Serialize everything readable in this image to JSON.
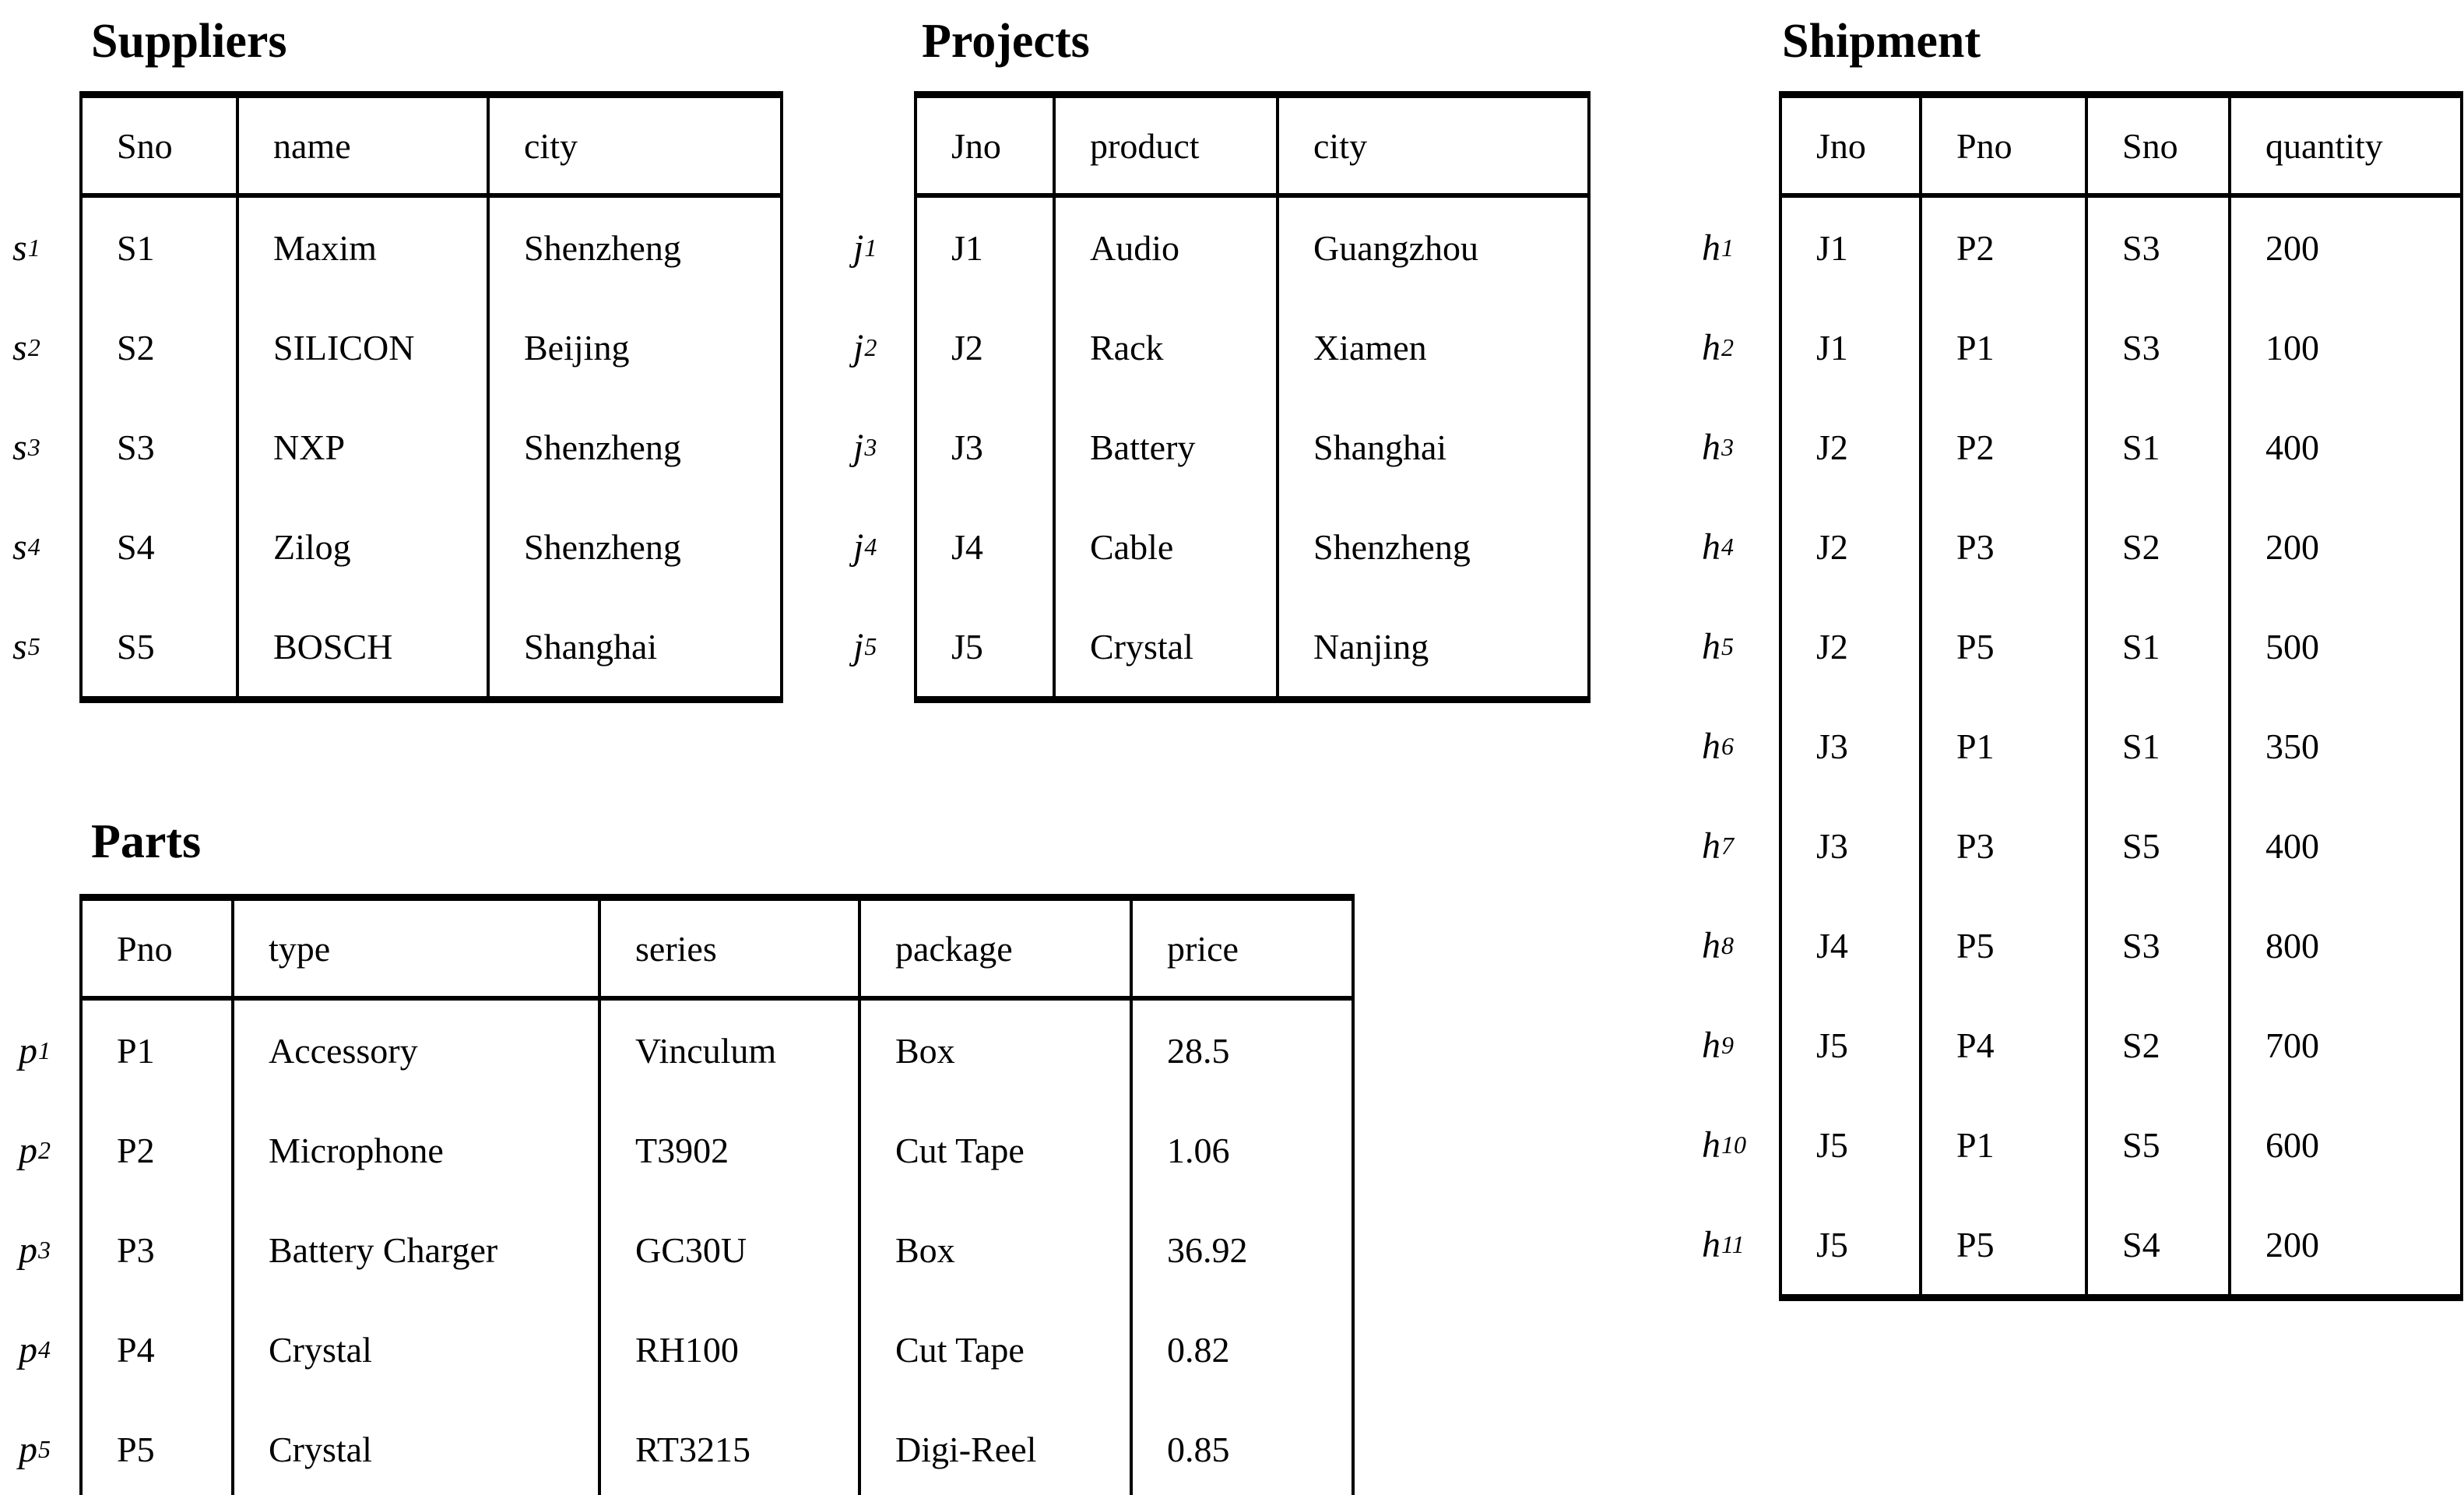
{
  "page": {
    "background_color": "#ffffff",
    "text_color": "#000000"
  },
  "tables": {
    "suppliers": {
      "title": "Suppliers",
      "columns": [
        "Sno",
        "name",
        "city"
      ],
      "row_labels": [
        "s1",
        "s2",
        "s3",
        "s4",
        "s5"
      ],
      "rows": [
        [
          "S1",
          "Maxim",
          "Shenzheng"
        ],
        [
          "S2",
          "SILICON",
          "Beijing"
        ],
        [
          "S3",
          "NXP",
          "Shenzheng"
        ],
        [
          "S4",
          "Zilog",
          "Shenzheng"
        ],
        [
          "S5",
          "BOSCH",
          "Shanghai"
        ]
      ]
    },
    "projects": {
      "title": "Projects",
      "columns": [
        "Jno",
        "product",
        "city"
      ],
      "row_labels": [
        "j1",
        "j2",
        "j3",
        "j4",
        "j5"
      ],
      "rows": [
        [
          "J1",
          "Audio",
          "Guangzhou"
        ],
        [
          "J2",
          "Rack",
          "Xiamen"
        ],
        [
          "J3",
          "Battery",
          "Shanghai"
        ],
        [
          "J4",
          "Cable",
          "Shenzheng"
        ],
        [
          "J5",
          "Crystal",
          "Nanjing"
        ]
      ]
    },
    "shipment": {
      "title": "Shipment",
      "columns": [
        "Jno",
        "Pno",
        "Sno",
        "quantity"
      ],
      "row_labels": [
        "h1",
        "h2",
        "h3",
        "h4",
        "h5",
        "h6",
        "h7",
        "h8",
        "h9",
        "h10",
        "h11"
      ],
      "rows": [
        [
          "J1",
          "P2",
          "S3",
          "200"
        ],
        [
          "J1",
          "P1",
          "S3",
          "100"
        ],
        [
          "J2",
          "P2",
          "S1",
          "400"
        ],
        [
          "J2",
          "P3",
          "S2",
          "200"
        ],
        [
          "J2",
          "P5",
          "S1",
          "500"
        ],
        [
          "J3",
          "P1",
          "S1",
          "350"
        ],
        [
          "J3",
          "P3",
          "S5",
          "400"
        ],
        [
          "J4",
          "P5",
          "S3",
          "800"
        ],
        [
          "J5",
          "P4",
          "S2",
          "700"
        ],
        [
          "J5",
          "P1",
          "S5",
          "600"
        ],
        [
          "J5",
          "P5",
          "S4",
          "200"
        ]
      ]
    },
    "parts": {
      "title": "Parts",
      "columns": [
        "Pno",
        "type",
        "series",
        "package",
        "price"
      ],
      "row_labels": [
        "p1",
        "p2",
        "p3",
        "p4",
        "p5"
      ],
      "rows": [
        [
          "P1",
          "Accessory",
          "Vinculum",
          "Box",
          "28.5"
        ],
        [
          "P2",
          "Microphone",
          "T3902",
          "Cut Tape",
          "1.06"
        ],
        [
          "P3",
          "Battery Charger",
          "GC30U",
          "Box",
          "36.92"
        ],
        [
          "P4",
          "Crystal",
          "RH100",
          "Cut Tape",
          "0.82"
        ],
        [
          "P5",
          "Crystal",
          "RT3215",
          "Digi-Reel",
          "0.85"
        ]
      ]
    }
  }
}
